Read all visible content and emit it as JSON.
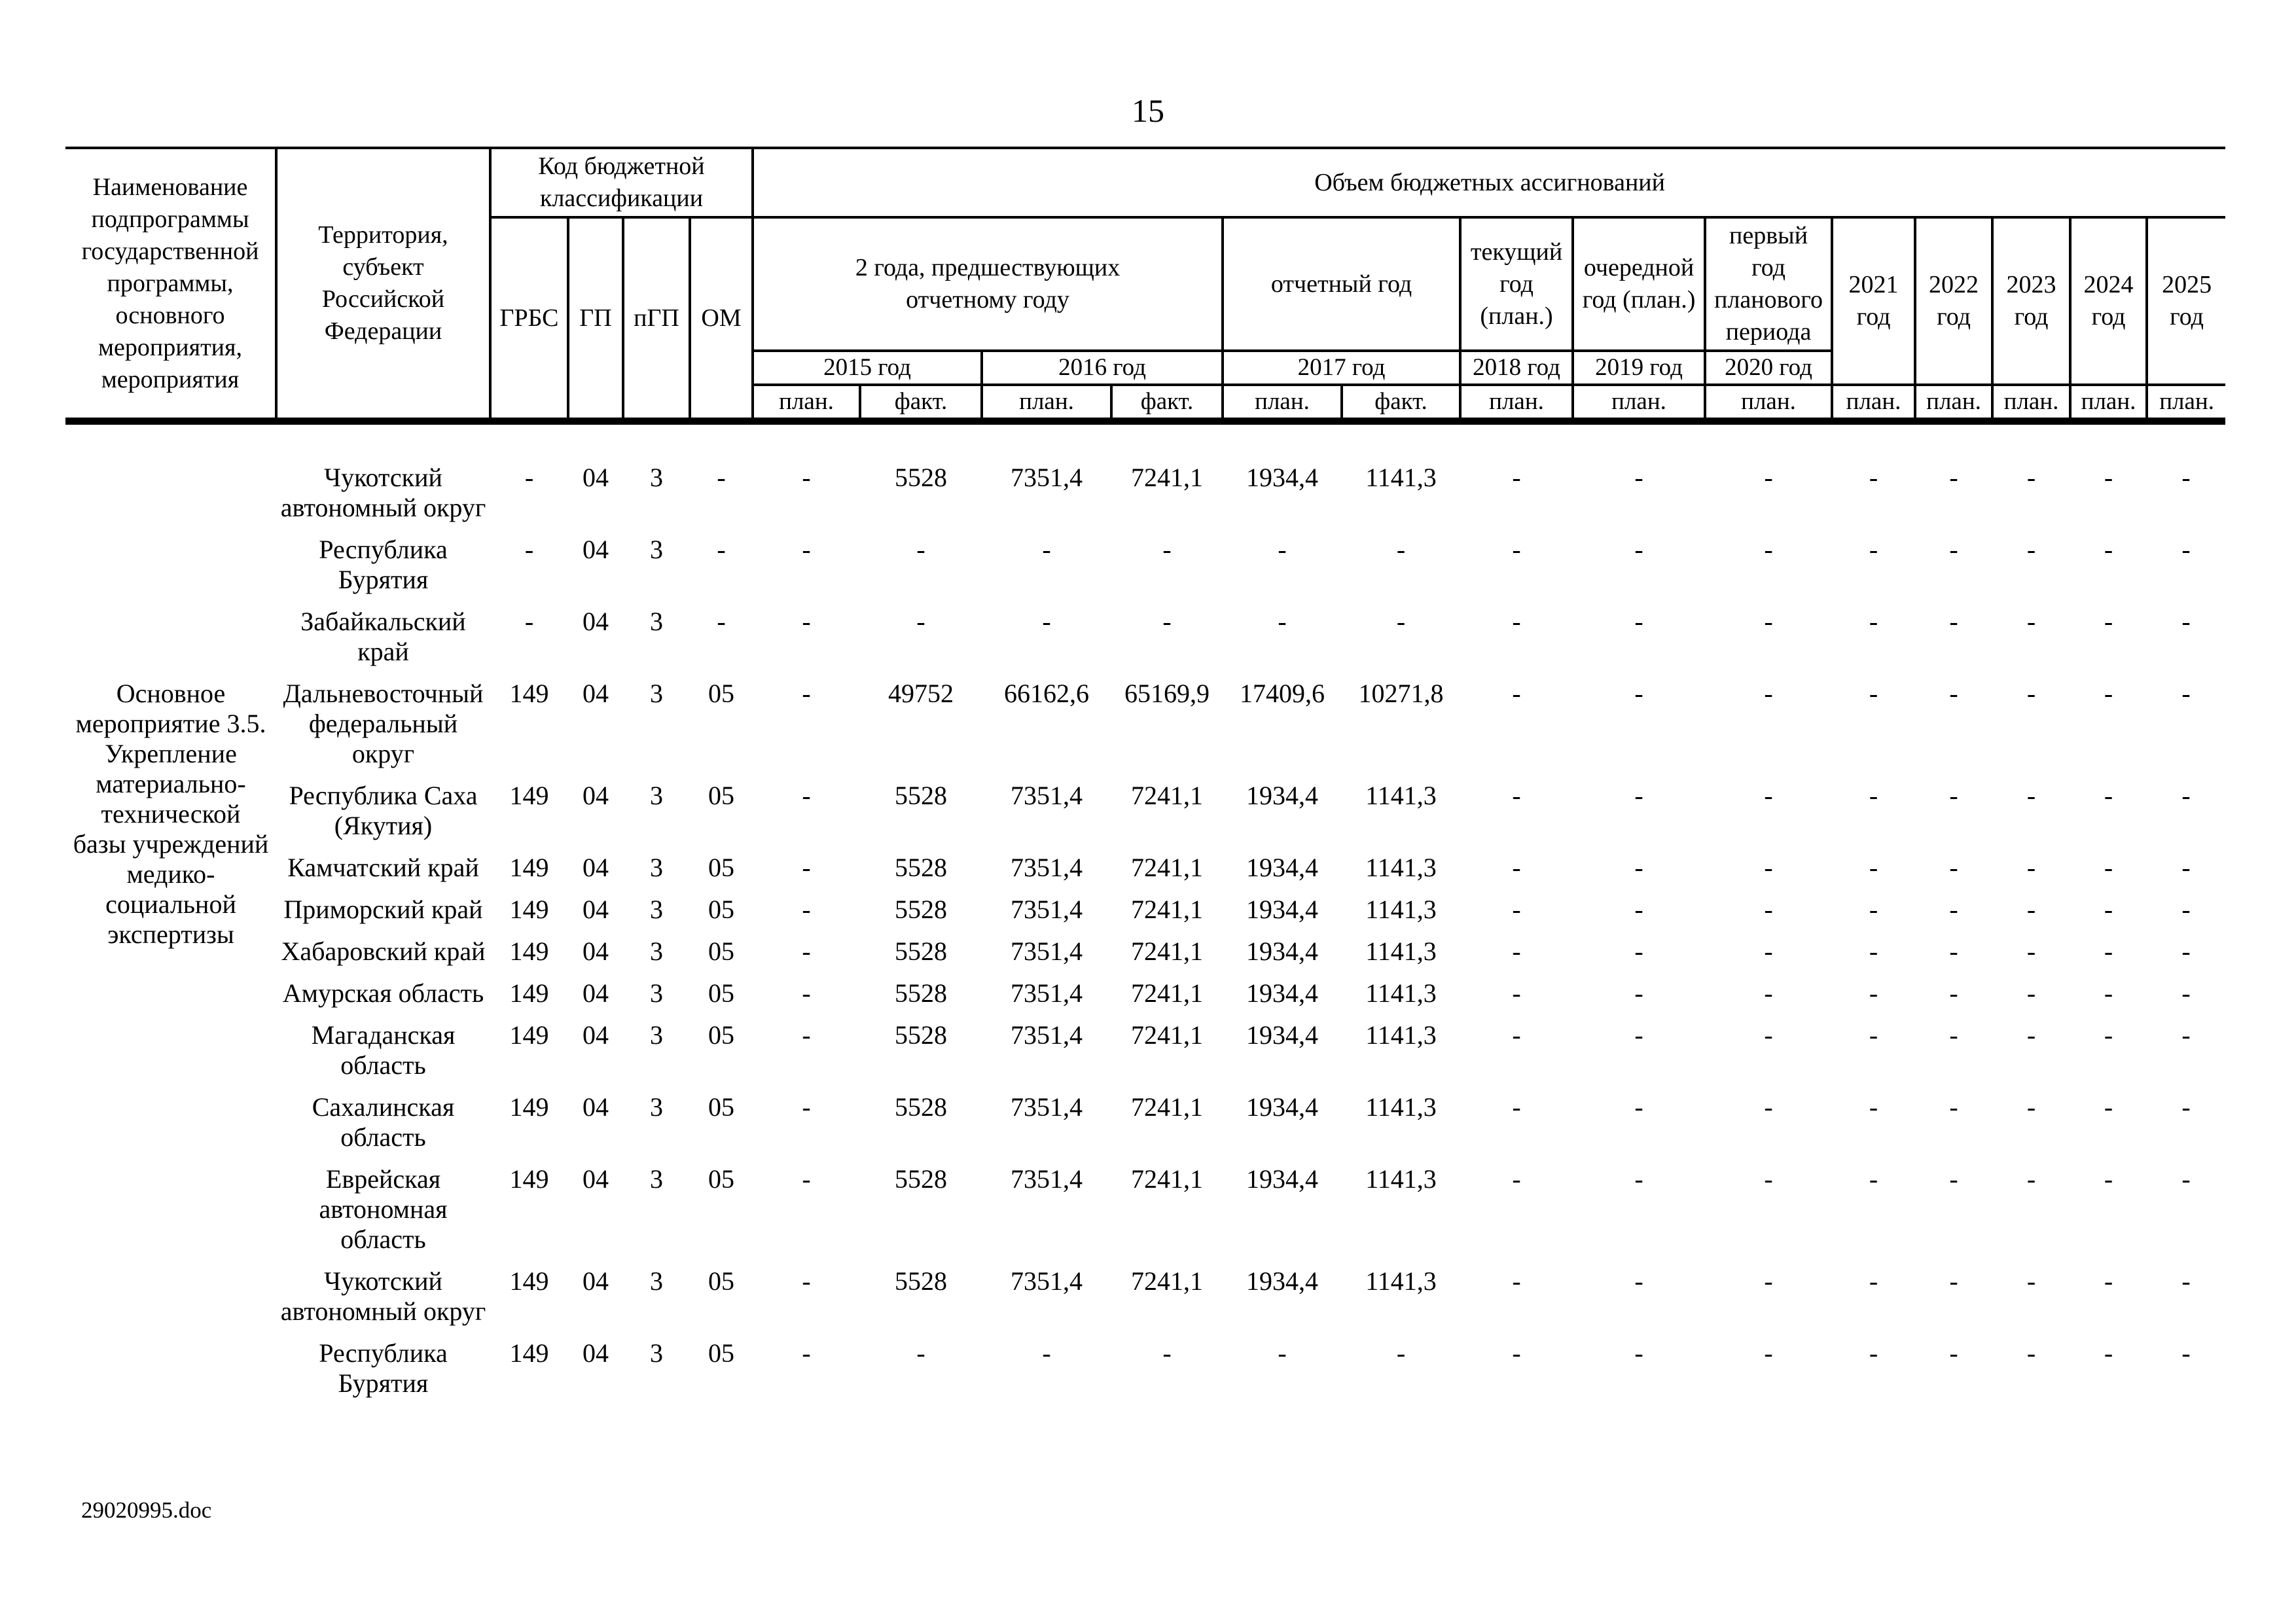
{
  "page": {
    "number": "15",
    "footer": "29020995.doc"
  },
  "table": {
    "header": {
      "col_name": "Наименование подпрограммы государственной программы, основного мероприятия, мероприятия",
      "col_territory": "Территория, субъект Российской Федерации",
      "budget_code_group": "Код бюджетной классификации",
      "budget_codes": [
        "ГРБС",
        "ГП",
        "пГП",
        "ОМ"
      ],
      "volume_group": "Объем бюджетных ассигнований",
      "period_groups": {
        "two_years": "2 года, предшествующих\nотчетному году",
        "report_year": "отчетный год",
        "current_year": "текущий год (план.)",
        "next_year": "очередной год (план.)",
        "first_plan_year": "первый год планового периода"
      },
      "year_row": [
        "2015 год",
        "2016 год",
        "2017 год",
        "2018 год",
        "2019 год",
        "2020 год"
      ],
      "future_years": [
        "2021 год",
        "2022 год",
        "2023 год",
        "2024 год",
        "2025 год"
      ],
      "measure_row": [
        "план.",
        "факт.",
        "план.",
        "факт.",
        "план.",
        "факт.",
        "план.",
        "план.",
        "план.",
        "план.",
        "план.",
        "план.",
        "план.",
        "план."
      ]
    },
    "program_label": "Основное\nмероприятие 3.5.\nУкрепление\nматериально-\nтехнической\nбазы учреждений\nмедико-\nсоциальной\nэкспертизы",
    "rows": [
      {
        "territory": "Чукотский\nавтономный округ",
        "grbs": "-",
        "gp": "04",
        "pgp": "3",
        "om": "-",
        "values": [
          "-",
          "5528",
          "7351,4",
          "7241,1",
          "1934,4",
          "1141,3",
          "-",
          "-",
          "-",
          "-",
          "-",
          "-",
          "-",
          "-"
        ]
      },
      {
        "territory": "Республика\nБурятия",
        "grbs": "-",
        "gp": "04",
        "pgp": "3",
        "om": "-",
        "values": [
          "-",
          "-",
          "-",
          "-",
          "-",
          "-",
          "-",
          "-",
          "-",
          "-",
          "-",
          "-",
          "-",
          "-"
        ]
      },
      {
        "territory": "Забайкальский\nкрай",
        "grbs": "-",
        "gp": "04",
        "pgp": "3",
        "om": "-",
        "values": [
          "-",
          "-",
          "-",
          "-",
          "-",
          "-",
          "-",
          "-",
          "-",
          "-",
          "-",
          "-",
          "-",
          "-"
        ]
      },
      {
        "territory": "Дальневосточный\nфедеральный\nокруг",
        "grbs": "149",
        "gp": "04",
        "pgp": "3",
        "om": "05",
        "values": [
          "-",
          "49752",
          "66162,6",
          "65169,9",
          "17409,6",
          "10271,8",
          "-",
          "-",
          "-",
          "-",
          "-",
          "-",
          "-",
          "-"
        ]
      },
      {
        "territory": "Республика Саха\n(Якутия)",
        "grbs": "149",
        "gp": "04",
        "pgp": "3",
        "om": "05",
        "values": [
          "-",
          "5528",
          "7351,4",
          "7241,1",
          "1934,4",
          "1141,3",
          "-",
          "-",
          "-",
          "-",
          "-",
          "-",
          "-",
          "-"
        ]
      },
      {
        "territory": "Камчатский край",
        "grbs": "149",
        "gp": "04",
        "pgp": "3",
        "om": "05",
        "values": [
          "-",
          "5528",
          "7351,4",
          "7241,1",
          "1934,4",
          "1141,3",
          "-",
          "-",
          "-",
          "-",
          "-",
          "-",
          "-",
          "-"
        ]
      },
      {
        "territory": "Приморский край",
        "grbs": "149",
        "gp": "04",
        "pgp": "3",
        "om": "05",
        "values": [
          "-",
          "5528",
          "7351,4",
          "7241,1",
          "1934,4",
          "1141,3",
          "-",
          "-",
          "-",
          "-",
          "-",
          "-",
          "-",
          "-"
        ]
      },
      {
        "territory": "Хабаровский край",
        "grbs": "149",
        "gp": "04",
        "pgp": "3",
        "om": "05",
        "values": [
          "-",
          "5528",
          "7351,4",
          "7241,1",
          "1934,4",
          "1141,3",
          "-",
          "-",
          "-",
          "-",
          "-",
          "-",
          "-",
          "-"
        ]
      },
      {
        "territory": "Амурская область",
        "grbs": "149",
        "gp": "04",
        "pgp": "3",
        "om": "05",
        "values": [
          "-",
          "5528",
          "7351,4",
          "7241,1",
          "1934,4",
          "1141,3",
          "-",
          "-",
          "-",
          "-",
          "-",
          "-",
          "-",
          "-"
        ]
      },
      {
        "territory": "Магаданская\nобласть",
        "grbs": "149",
        "gp": "04",
        "pgp": "3",
        "om": "05",
        "values": [
          "-",
          "5528",
          "7351,4",
          "7241,1",
          "1934,4",
          "1141,3",
          "-",
          "-",
          "-",
          "-",
          "-",
          "-",
          "-",
          "-"
        ]
      },
      {
        "territory": "Сахалинская\nобласть",
        "grbs": "149",
        "gp": "04",
        "pgp": "3",
        "om": "05",
        "values": [
          "-",
          "5528",
          "7351,4",
          "7241,1",
          "1934,4",
          "1141,3",
          "-",
          "-",
          "-",
          "-",
          "-",
          "-",
          "-",
          "-"
        ]
      },
      {
        "territory": "Еврейская\nавтономная\nобласть",
        "grbs": "149",
        "gp": "04",
        "pgp": "3",
        "om": "05",
        "values": [
          "-",
          "5528",
          "7351,4",
          "7241,1",
          "1934,4",
          "1141,3",
          "-",
          "-",
          "-",
          "-",
          "-",
          "-",
          "-",
          "-"
        ]
      },
      {
        "territory": "Чукотский\nавтономный округ",
        "grbs": "149",
        "gp": "04",
        "pgp": "3",
        "om": "05",
        "values": [
          "-",
          "5528",
          "7351,4",
          "7241,1",
          "1934,4",
          "1141,3",
          "-",
          "-",
          "-",
          "-",
          "-",
          "-",
          "-",
          "-"
        ]
      },
      {
        "territory": "Республика\nБурятия",
        "grbs": "149",
        "gp": "04",
        "pgp": "3",
        "om": "05",
        "values": [
          "-",
          "-",
          "-",
          "-",
          "-",
          "-",
          "-",
          "-",
          "-",
          "-",
          "-",
          "-",
          "-",
          "-"
        ]
      }
    ]
  }
}
